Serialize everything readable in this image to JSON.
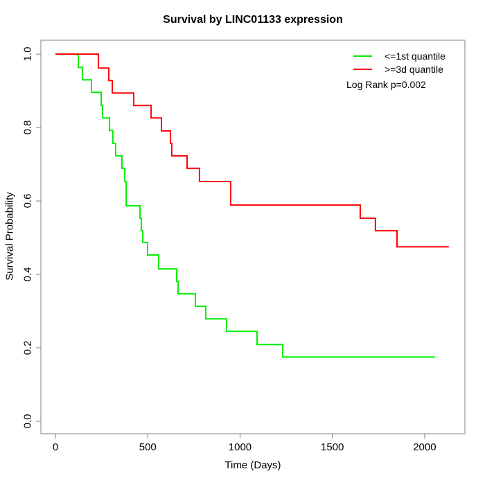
{
  "chart_data": {
    "type": "line",
    "subtype": "kaplan-meier-step",
    "title": "Survival by LINC01133 expression",
    "xlabel": "Time (Days)",
    "ylabel": "Survival Probability",
    "grid": false,
    "legend_position": "top-right",
    "annotation": "Log Rank p=0.002",
    "x_ticks": [
      0,
      500,
      1000,
      1500,
      2000
    ],
    "x_tick_labels": [
      "0",
      "500",
      "1000",
      "1500",
      "2000"
    ],
    "y_ticks": [
      0.0,
      0.2,
      0.4,
      0.6,
      0.8,
      1.0
    ],
    "y_tick_labels": [
      "0.0",
      "0.2",
      "0.4",
      "0.6",
      "0.8",
      "1.0"
    ],
    "x_range": [
      -79,
      2218
    ],
    "y_range": [
      -0.034,
      1.038
    ],
    "axis_color": "#808080",
    "series": [
      {
        "name": "<=1st quantile",
        "color": "#00EE00",
        "points": [
          [
            0,
            1.0
          ],
          [
            124,
            0.964
          ],
          [
            146,
            0.93
          ],
          [
            195,
            0.896
          ],
          [
            248,
            0.86
          ],
          [
            255,
            0.826
          ],
          [
            293,
            0.792
          ],
          [
            311,
            0.757
          ],
          [
            326,
            0.723
          ],
          [
            360,
            0.689
          ],
          [
            375,
            0.653
          ],
          [
            383,
            0.587
          ],
          [
            458,
            0.553
          ],
          [
            465,
            0.519
          ],
          [
            473,
            0.487
          ],
          [
            499,
            0.453
          ],
          [
            559,
            0.415
          ],
          [
            657,
            0.381
          ],
          [
            664,
            0.347
          ],
          [
            758,
            0.313
          ],
          [
            814,
            0.279
          ],
          [
            927,
            0.245
          ],
          [
            1092,
            0.209
          ],
          [
            1231,
            0.175
          ],
          [
            2056,
            0.175
          ]
        ]
      },
      {
        "name": ">=3d quantile",
        "color": "#FF0000",
        "points": [
          [
            0,
            1.0
          ],
          [
            233,
            0.962
          ],
          [
            289,
            0.928
          ],
          [
            308,
            0.894
          ],
          [
            424,
            0.86
          ],
          [
            518,
            0.826
          ],
          [
            574,
            0.791
          ],
          [
            623,
            0.757
          ],
          [
            630,
            0.723
          ],
          [
            713,
            0.689
          ],
          [
            780,
            0.653
          ],
          [
            949,
            0.589
          ],
          [
            1651,
            0.553
          ],
          [
            1733,
            0.519
          ],
          [
            1850,
            0.475
          ],
          [
            2131,
            0.475
          ]
        ]
      }
    ]
  }
}
